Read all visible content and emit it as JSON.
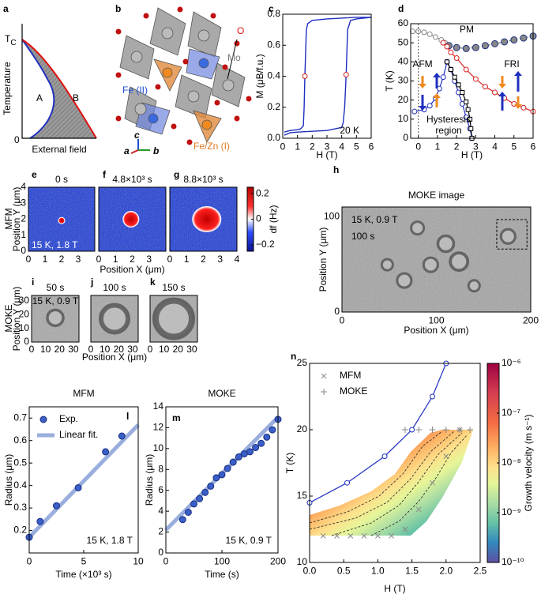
{
  "panel_a": {
    "label": "a",
    "tc": "T",
    "tc_sub": "C",
    "ylabel": "Temperature",
    "xlabel": "External field",
    "origin": 0,
    "region_a": "A",
    "region_b": "B"
  },
  "panel_b": {
    "label": "b",
    "atoms": [
      "O",
      "Mo",
      "Fe (II)",
      "Fe/Zn (I)"
    ],
    "axes": [
      "a",
      "b",
      "c"
    ]
  },
  "row_labels": [
    "MFM",
    "MOKE"
  ],
  "chart_data": [
    {
      "type": "line",
      "label": "c",
      "xlabel": "H (T)",
      "ylabel": "M (μB/f.u.)",
      "xlim": [
        0,
        6
      ],
      "ylim": [
        0,
        0.8
      ],
      "xticks": [
        0,
        1,
        2,
        3,
        4,
        5,
        6
      ],
      "yticks": [
        {
          "value": 0,
          "label": "0.0"
        },
        0.2,
        0.4,
        0.6,
        0.8
      ],
      "annotations": [
        "20 K"
      ],
      "series": [
        {
          "color": "#1f2fbf",
          "marker": "none",
          "x": [
            0.1,
            0.5,
            1,
            2,
            3,
            4,
            4.1,
            4.2,
            4.3,
            4.4,
            4.6,
            5,
            6
          ],
          "values": [
            0.02,
            0.035,
            0.04,
            0.045,
            0.05,
            0.07,
            0.1,
            0.2,
            0.41,
            0.7,
            0.76,
            0.77,
            0.78
          ]
        },
        {
          "color": "#1f2fbf",
          "marker": "none",
          "x": [
            6,
            5,
            4,
            3,
            2,
            1.7,
            1.6,
            1.5,
            1.45,
            1.4,
            1.2,
            1,
            0.5,
            0.1
          ],
          "values": [
            0.78,
            0.78,
            0.775,
            0.77,
            0.76,
            0.74,
            0.7,
            0.4,
            0.2,
            0.08,
            0.06,
            0.055,
            0.05,
            0.04
          ]
        },
        {
          "color": "#d62020",
          "marker": "circle-open",
          "line": false,
          "x": [
            1.5,
            4.3
          ],
          "values": [
            0.4,
            0.41
          ]
        }
      ]
    },
    {
      "type": "line",
      "label": "d",
      "xlabel": "H (T)",
      "ylabel": "T (K)",
      "xlim": [
        -0.4,
        6
      ],
      "ylim": [
        0,
        60
      ],
      "xticks": [
        0,
        1,
        2,
        3,
        4,
        5,
        6
      ],
      "yticks": [
        0,
        10,
        20,
        30,
        40,
        50,
        60
      ],
      "annotations": [
        "PM",
        "AFM",
        "FRI",
        "Hysteresis",
        "region"
      ],
      "series": [
        {
          "color": "#888888",
          "marker": "circle-open",
          "x": [
            -0.3,
            0,
            0.3,
            0.6,
            0.9,
            1.2,
            1.4
          ],
          "values": [
            56,
            56,
            55.5,
            54.5,
            53,
            51.5,
            50
          ]
        },
        {
          "color": "#888888",
          "marker": "circle",
          "dash": true,
          "x": [
            1.6,
            2,
            2.5,
            3,
            3.5,
            4,
            4.5,
            5,
            5.5,
            6
          ],
          "values": [
            48.5,
            47.5,
            47,
            47.5,
            48.5,
            49.5,
            50.5,
            51.5,
            52.5,
            53.5
          ]
        },
        {
          "color": "#d62020",
          "marker": "circle-open",
          "x": [
            1.3,
            1.5,
            1.7,
            2,
            2.5,
            3,
            3.5,
            4,
            4.5,
            5,
            5.5,
            6
          ],
          "values": [
            50,
            48,
            45,
            42,
            36,
            31,
            27,
            24,
            21,
            18,
            16,
            14
          ]
        },
        {
          "color": "#1f2fbf",
          "marker": "circle-open",
          "x": [
            -0.2,
            0.3,
            0.6,
            0.9,
            1.1,
            1.3,
            1.5,
            1.7,
            1.9,
            2.1,
            2.3,
            2.5,
            2.7,
            2.8
          ],
          "values": [
            14,
            15,
            17,
            21,
            26,
            32,
            40,
            36,
            30,
            24,
            18,
            11,
            5,
            0
          ]
        },
        {
          "color": "#000000",
          "marker": "square-open",
          "x": [
            1.5,
            1.7,
            1.9,
            2.1,
            2.3,
            2.5,
            2.6,
            2.7,
            2.75,
            2.8
          ],
          "values": [
            40,
            36,
            32,
            28,
            24,
            19,
            15,
            10,
            5,
            0
          ]
        }
      ]
    },
    {
      "type": "image",
      "label": "e",
      "title": "0 s",
      "xlim": [
        0,
        4
      ],
      "ylim": [
        0,
        4
      ],
      "xticks": [
        0,
        1,
        2,
        3
      ],
      "yticks": [
        0,
        1,
        2,
        3,
        4
      ],
      "ylabel": "Position Y (μm)",
      "annotations": [
        "15 K, 1.8 T"
      ]
    },
    {
      "type": "image",
      "label": "f",
      "title": "4.8×10³ s",
      "xlim": [
        0,
        4
      ],
      "ylim": [
        0,
        4
      ],
      "xticks": [
        0,
        1,
        2,
        3
      ],
      "xlabel": "Position X (μm)"
    },
    {
      "type": "image",
      "label": "g",
      "title": "8.8×10³ s",
      "xlim": [
        0,
        4
      ],
      "ylim": [
        0,
        4
      ],
      "xticks": [
        0,
        1,
        2,
        3,
        4
      ],
      "colorbar": {
        "label": "df (Hz)",
        "lim": [
          -0.25,
          0.25
        ],
        "ticks": [
          0.2,
          0,
          {
            "value": -0.2,
            "label": "−0.2"
          }
        ]
      }
    },
    {
      "type": "image",
      "label": "h",
      "title": "MOKE image",
      "xlim": [
        0,
        200
      ],
      "ylim": [
        0,
        110
      ],
      "xticks": [
        0,
        100,
        200
      ],
      "yticks": [
        0,
        100
      ],
      "xlabel": "Position X (μm)",
      "ylabel": "Position Y (μm)",
      "annotations": [
        "15 K, 0.9 T",
        "100 s"
      ]
    },
    {
      "type": "image",
      "label": "i",
      "title": "50 s",
      "xlim": [
        0,
        34
      ],
      "ylim": [
        0,
        34
      ],
      "xticks": [
        0,
        10,
        20,
        30
      ],
      "yticks": [
        0,
        10,
        20,
        30
      ],
      "ylabel": "Position Y (μm)",
      "annotations": [
        "15 K, 0.9 T"
      ]
    },
    {
      "type": "image",
      "label": "j",
      "title": "100 s",
      "xlim": [
        0,
        34
      ],
      "ylim": [
        0,
        34
      ],
      "xticks": [
        0,
        10,
        20,
        30
      ],
      "xlabel": "Position X (μm)"
    },
    {
      "type": "image",
      "label": "k",
      "title": "150 s",
      "xlim": [
        0,
        34
      ],
      "ylim": [
        0,
        34
      ],
      "xticks": [
        0,
        10,
        20,
        30
      ]
    },
    {
      "type": "line",
      "label": "l",
      "title": "MFM",
      "xlabel": "Time (×10³ s)",
      "ylabel": "Radius (μm)",
      "xlim": [
        0,
        10
      ],
      "ylim": [
        0.1,
        0.75
      ],
      "xticks": [
        0,
        5,
        10
      ],
      "yticks": [
        0.2,
        0.3,
        0.4,
        0.5,
        0.6,
        0.7
      ],
      "legend": "upper left",
      "annotations": [
        "15 K, 1.8 T"
      ],
      "series": [
        {
          "name": "Exp.",
          "color": "#3a5fc8",
          "marker": "circle",
          "line": false,
          "x": [
            0,
            1,
            2.5,
            4.5,
            7,
            8.5
          ],
          "values": [
            0.17,
            0.24,
            0.31,
            0.39,
            0.55,
            0.62
          ]
        },
        {
          "name": "Linear fit.",
          "color": "#9aaede",
          "marker": "none",
          "x": [
            0,
            10
          ],
          "values": [
            0.17,
            0.67
          ]
        }
      ]
    },
    {
      "type": "line",
      "label": "m",
      "title": "MOKE",
      "xlabel": "Time (s)",
      "ylabel": "Radius (μm)",
      "xlim": [
        0,
        200
      ],
      "ylim": [
        0,
        14
      ],
      "xticks": [
        0,
        100,
        200
      ],
      "yticks": [
        0,
        2,
        4,
        6,
        8,
        10,
        12,
        14
      ],
      "annotations": [
        "15 K, 0.9 T"
      ],
      "series": [
        {
          "color": "#3a5fc8",
          "marker": "circle",
          "line": false,
          "x": [
            30,
            40,
            50,
            60,
            70,
            80,
            90,
            100,
            110,
            120,
            130,
            140,
            150,
            160,
            170,
            180,
            190,
            200
          ],
          "values": [
            3.2,
            3.9,
            4.7,
            5.2,
            5.8,
            6.4,
            7.2,
            7.5,
            8.1,
            8.7,
            9.2,
            9.5,
            9.7,
            10.1,
            10.5,
            11.1,
            11.8,
            12.8
          ]
        },
        {
          "color": "#9aaede",
          "marker": "none",
          "x": [
            0,
            200
          ],
          "values": [
            2.2,
            13
          ]
        }
      ]
    },
    {
      "type": "line",
      "label": "n",
      "xlabel": "H (T)",
      "ylabel": "T (K)",
      "xlim": [
        0,
        2.5
      ],
      "ylim": [
        10,
        25
      ],
      "xticks": [
        {
          "value": 0,
          "label": "0.0"
        },
        0.5,
        {
          "value": 1,
          "label": "1.0"
        },
        1.5,
        {
          "value": 2,
          "label": "2.0"
        },
        2.5
      ],
      "yticks": [
        10,
        15,
        20,
        25
      ],
      "legend": "upper left",
      "series": [
        {
          "name": "MFM",
          "color": "#888888",
          "marker": "x",
          "line": false,
          "x": [
            0.2,
            0.4,
            0.6,
            0.8,
            1.0,
            1.2,
            1.4,
            1.6,
            1.8,
            2.0,
            2.2
          ],
          "values": [
            12,
            12,
            12,
            12,
            12,
            12,
            12.5,
            14,
            16,
            18,
            20
          ]
        },
        {
          "name": "MOKE",
          "color": "#888888",
          "marker": "+",
          "line": false,
          "x": [
            1.4,
            1.6,
            1.8,
            2.0,
            2.2,
            2.35
          ],
          "values": [
            20,
            20,
            20,
            20,
            20,
            20
          ]
        },
        {
          "color": "#1f2fbf",
          "marker": "circle-open",
          "x": [
            0,
            0.55,
            1.1,
            1.5,
            1.8,
            2.0
          ],
          "values": [
            14.5,
            16,
            18,
            20,
            22.5,
            25
          ]
        }
      ],
      "colorbar": {
        "label": "Growth velocity (m s⁻¹)",
        "log": true,
        "lim": [
          1e-10,
          1e-06
        ],
        "ticks": [
          {
            "value": 1e-06,
            "label": "10⁻⁶"
          },
          {
            "value": 1e-07,
            "label": "10⁻⁷"
          },
          {
            "value": 1e-08,
            "label": "10⁻⁸"
          },
          {
            "value": 1e-09,
            "label": "10⁻⁹"
          },
          {
            "value": 1e-10,
            "label": "10⁻¹⁰"
          }
        ]
      }
    }
  ]
}
